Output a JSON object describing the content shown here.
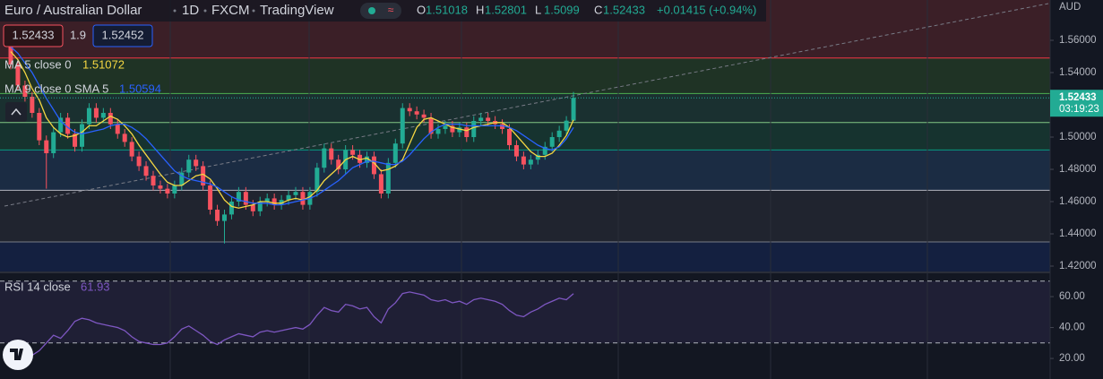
{
  "chart_data": [
    {
      "type": "candlestick",
      "title": "Euro / Australian Dollar",
      "interval": "1D",
      "source": "FXCM",
      "brand": "TradingView",
      "currency": "AUD",
      "ohlc_labels": [
        "O",
        "H",
        "L",
        "C"
      ],
      "change_text": "+0.01415 (+0.94%)",
      "bid": 1.52433,
      "spread": 1.9,
      "ask": 1.52452,
      "countdown": "03:19:23",
      "open": [
        1.558,
        1.545,
        1.532,
        1.525,
        1.515,
        1.498,
        1.49,
        1.503,
        1.512,
        1.502,
        1.494,
        1.508,
        1.518,
        1.512,
        1.515,
        1.508,
        1.502,
        1.497,
        1.488,
        1.482,
        1.476,
        1.47,
        1.468,
        1.465,
        1.47,
        1.478,
        1.486,
        1.482,
        1.47,
        1.455,
        1.448,
        1.452,
        1.46,
        1.466,
        1.458,
        1.454,
        1.46,
        1.462,
        1.458,
        1.461,
        1.464,
        1.466,
        1.458,
        1.466,
        1.481,
        1.493,
        1.486,
        1.48,
        1.492,
        1.489,
        1.484,
        1.488,
        1.477,
        1.465,
        1.484,
        1.496,
        1.518,
        1.516,
        1.514,
        1.512,
        1.502,
        1.505,
        1.507,
        1.503,
        1.506,
        1.5,
        1.51,
        1.512,
        1.51,
        1.508,
        1.505,
        1.495,
        1.488,
        1.483,
        1.486,
        1.489,
        1.494,
        1.5,
        1.504,
        1.51018
      ],
      "high": [
        1.561,
        1.548,
        1.535,
        1.528,
        1.518,
        1.501,
        1.506,
        1.515,
        1.515,
        1.505,
        1.511,
        1.521,
        1.521,
        1.518,
        1.518,
        1.511,
        1.505,
        1.5,
        1.491,
        1.485,
        1.479,
        1.473,
        1.471,
        1.473,
        1.481,
        1.489,
        1.489,
        1.485,
        1.473,
        1.458,
        1.455,
        1.463,
        1.469,
        1.469,
        1.461,
        1.463,
        1.465,
        1.465,
        1.464,
        1.467,
        1.469,
        1.469,
        1.469,
        1.484,
        1.496,
        1.496,
        1.489,
        1.495,
        1.495,
        1.492,
        1.491,
        1.491,
        1.48,
        1.487,
        1.499,
        1.521,
        1.521,
        1.519,
        1.517,
        1.515,
        1.508,
        1.51,
        1.51,
        1.509,
        1.509,
        1.513,
        1.515,
        1.515,
        1.513,
        1.511,
        1.508,
        1.498,
        1.491,
        1.489,
        1.492,
        1.497,
        1.503,
        1.507,
        1.513,
        1.52801
      ],
      "low": [
        1.542,
        1.529,
        1.522,
        1.512,
        1.495,
        1.468,
        1.487,
        1.5,
        1.499,
        1.491,
        1.491,
        1.505,
        1.509,
        1.509,
        1.505,
        1.499,
        1.494,
        1.485,
        1.479,
        1.473,
        1.467,
        1.465,
        1.462,
        1.462,
        1.467,
        1.475,
        1.479,
        1.467,
        1.452,
        1.445,
        1.434,
        1.449,
        1.457,
        1.455,
        1.451,
        1.451,
        1.457,
        1.455,
        1.455,
        1.458,
        1.461,
        1.455,
        1.455,
        1.463,
        1.478,
        1.483,
        1.477,
        1.477,
        1.486,
        1.481,
        1.481,
        1.474,
        1.462,
        1.462,
        1.481,
        1.493,
        1.513,
        1.511,
        1.509,
        1.499,
        1.499,
        1.502,
        1.5,
        1.5,
        1.497,
        1.497,
        1.507,
        1.507,
        1.505,
        1.502,
        1.492,
        1.485,
        1.48,
        1.48,
        1.483,
        1.486,
        1.491,
        1.497,
        1.501,
        1.5099
      ],
      "close": [
        1.545,
        1.532,
        1.525,
        1.515,
        1.498,
        1.49,
        1.503,
        1.512,
        1.502,
        1.494,
        1.508,
        1.518,
        1.512,
        1.515,
        1.508,
        1.502,
        1.497,
        1.488,
        1.482,
        1.476,
        1.47,
        1.468,
        1.465,
        1.47,
        1.478,
        1.486,
        1.482,
        1.47,
        1.455,
        1.448,
        1.452,
        1.46,
        1.466,
        1.458,
        1.454,
        1.46,
        1.462,
        1.458,
        1.461,
        1.464,
        1.466,
        1.458,
        1.466,
        1.481,
        1.493,
        1.486,
        1.48,
        1.492,
        1.489,
        1.484,
        1.488,
        1.477,
        1.465,
        1.484,
        1.496,
        1.518,
        1.516,
        1.514,
        1.512,
        1.502,
        1.505,
        1.507,
        1.503,
        1.506,
        1.5,
        1.51,
        1.512,
        1.51,
        1.508,
        1.505,
        1.495,
        1.488,
        1.483,
        1.486,
        1.489,
        1.494,
        1.5,
        1.504,
        1.51018,
        1.52433
      ],
      "up_color": "#22ab94",
      "down_color": "#f7525f",
      "series": [
        {
          "name": "MA 5 close 0",
          "color": "#f5d742",
          "values": [
            1.553,
            1.548,
            1.54,
            1.53,
            1.523,
            1.512,
            1.506,
            1.502,
            1.5,
            1.501,
            1.503,
            1.507,
            1.507,
            1.51,
            1.513,
            1.511,
            1.507,
            1.502,
            1.495,
            1.489,
            1.483,
            1.477,
            1.472,
            1.47,
            1.47,
            1.473,
            1.476,
            1.477,
            1.474,
            1.468,
            1.461,
            1.457,
            1.456,
            1.457,
            1.458,
            1.46,
            1.46,
            1.459,
            1.459,
            1.461,
            1.462,
            1.461,
            1.463,
            1.467,
            1.473,
            1.477,
            1.481,
            1.486,
            1.488,
            1.486,
            1.487,
            1.484,
            1.479,
            1.48,
            1.482,
            1.486,
            1.496,
            1.506,
            1.511,
            1.512,
            1.51,
            1.508,
            1.506,
            1.505,
            1.504,
            1.506,
            1.507,
            1.508,
            1.509,
            1.509,
            1.506,
            1.501,
            1.496,
            1.491,
            1.488,
            1.488,
            1.49,
            1.495,
            1.501,
            1.51072
          ]
        },
        {
          "name": "MA 9 close 0 SMA 5",
          "color": "#2962ff",
          "values": [
            1.556,
            1.552,
            1.546,
            1.54,
            1.532,
            1.524,
            1.517,
            1.51,
            1.506,
            1.503,
            1.502,
            1.503,
            1.504,
            1.505,
            1.507,
            1.508,
            1.508,
            1.506,
            1.503,
            1.499,
            1.494,
            1.489,
            1.484,
            1.479,
            1.476,
            1.474,
            1.473,
            1.472,
            1.471,
            1.469,
            1.466,
            1.463,
            1.461,
            1.46,
            1.459,
            1.459,
            1.459,
            1.458,
            1.458,
            1.459,
            1.46,
            1.461,
            1.462,
            1.464,
            1.467,
            1.47,
            1.473,
            1.477,
            1.481,
            1.483,
            1.485,
            1.485,
            1.484,
            1.483,
            1.483,
            1.485,
            1.489,
            1.494,
            1.499,
            1.503,
            1.506,
            1.508,
            1.508,
            1.508,
            1.507,
            1.507,
            1.507,
            1.507,
            1.507,
            1.507,
            1.506,
            1.504,
            1.501,
            1.498,
            1.495,
            1.493,
            1.492,
            1.494,
            1.499,
            1.50594
          ]
        }
      ],
      "levels": [
        1.549,
        1.527,
        1.509,
        1.492,
        1.467,
        1.435
      ],
      "level_colors": [
        "#f23645",
        "#4caf50",
        "#81c784",
        "#089981",
        "#b2b5be",
        "#787b86"
      ],
      "band_colors": [
        "#3b1f27",
        "#1f3325",
        "#1a3030",
        "#16332f",
        "#1b2c43",
        "#20242f",
        "#142040"
      ],
      "ylim": [
        1.41667,
        1.585
      ],
      "yticks": [
        {
          "value": 1.56,
          "label": "1.56000"
        },
        {
          "value": 1.54,
          "label": "1.54000"
        },
        {
          "value": 1.5,
          "label": "1.50000"
        },
        {
          "value": 1.48,
          "label": "1.48000"
        },
        {
          "value": 1.46,
          "label": "1.46000"
        },
        {
          "value": 1.44,
          "label": "1.44000"
        },
        {
          "value": 1.42,
          "label": "1.42000"
        }
      ]
    },
    {
      "type": "line",
      "title": "RSI 14 close",
      "series": [
        {
          "name": "RSI",
          "color": "#7e57c2",
          "values": [
            20,
            18,
            19,
            22,
            25,
            30,
            35,
            33,
            38,
            44,
            46,
            45,
            43,
            42,
            41,
            40,
            38,
            34,
            31,
            30,
            29,
            29,
            30,
            34,
            39,
            41,
            38,
            35,
            31,
            29,
            32,
            34,
            36,
            35,
            34,
            37,
            38,
            37,
            38,
            39,
            40,
            39,
            42,
            48,
            53,
            51,
            50,
            55,
            54,
            52,
            53,
            47,
            43,
            52,
            56,
            62,
            63,
            62,
            61,
            58,
            57,
            58,
            56,
            57,
            55,
            58,
            59,
            58,
            57,
            55,
            51,
            48,
            47,
            50,
            52,
            55,
            57,
            59,
            58,
            61.93
          ]
        }
      ],
      "levels": [
        70,
        30
      ],
      "ylim": [
        6.7,
        75.1
      ],
      "yticks": [
        {
          "value": 60,
          "label": "60.00"
        },
        {
          "value": 40,
          "label": "40.00"
        },
        {
          "value": 20,
          "label": "20.00"
        }
      ]
    }
  ]
}
